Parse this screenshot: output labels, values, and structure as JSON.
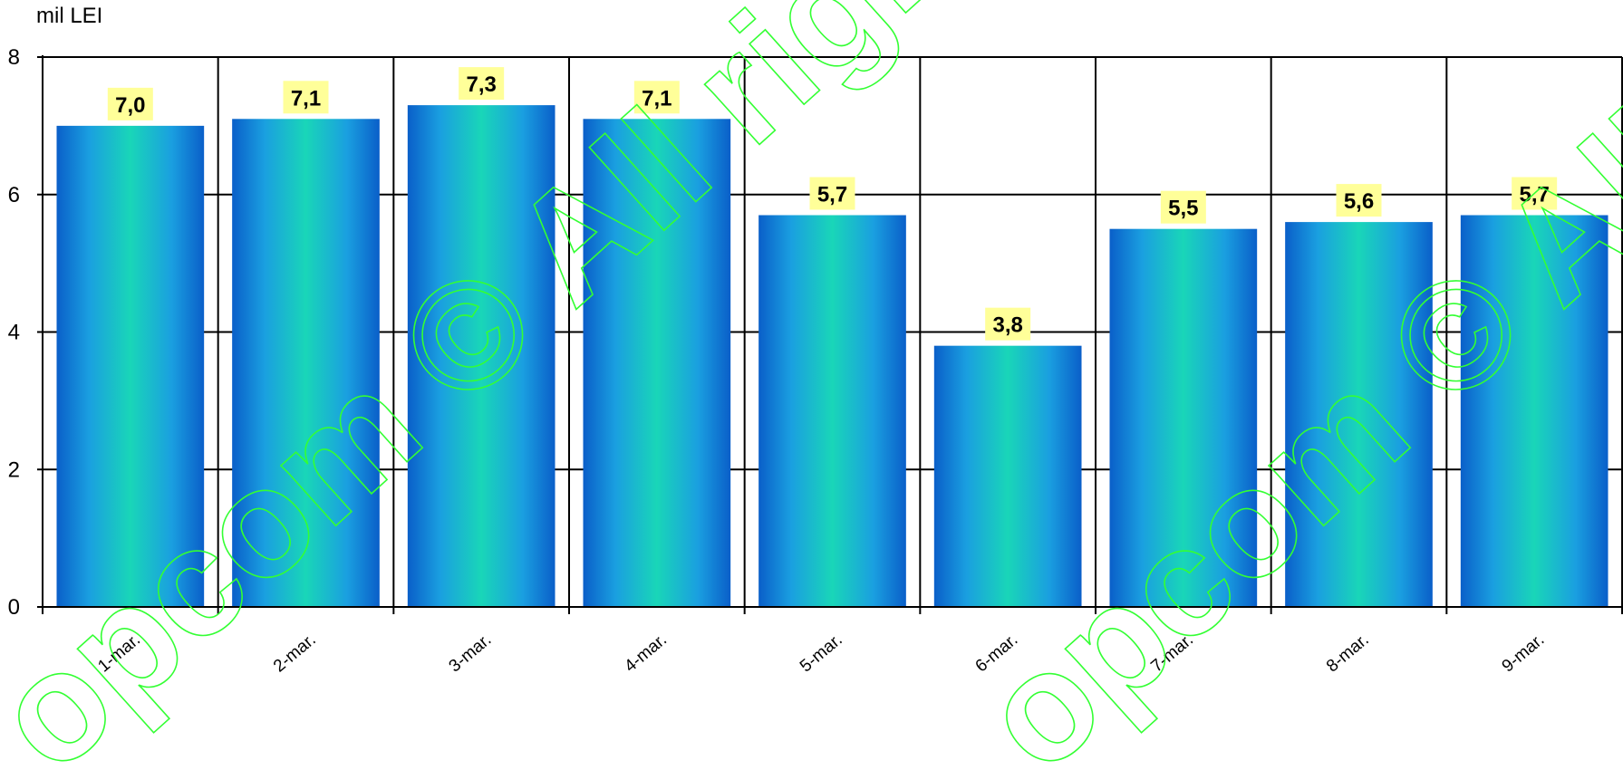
{
  "chart_data": {
    "type": "bar",
    "unit_label": "mil LEI",
    "categories": [
      "1-mar.",
      "2-mar.",
      "3-mar.",
      "4-mar.",
      "5-mar.",
      "6-mar.",
      "7-mar.",
      "8-mar.",
      "9-mar."
    ],
    "values": [
      7.0,
      7.1,
      7.3,
      7.1,
      5.7,
      3.8,
      5.5,
      5.6,
      5.7
    ],
    "value_labels": [
      "7,0",
      "7,1",
      "7,3",
      "7,1",
      "5,7",
      "3,8",
      "5,5",
      "5,6",
      "5,7"
    ],
    "ylim": [
      0,
      8
    ],
    "yticks": [
      0,
      2,
      4,
      6,
      8
    ],
    "ytick_labels": [
      "0",
      "2",
      "4",
      "6",
      "8"
    ],
    "grid": true,
    "legend": "none",
    "colors": {
      "bar_edge": "#0a5fc9",
      "bar_center": "#19d6b8",
      "label_bg": "#ffff99",
      "grid": "#000000"
    },
    "watermark": "opcom © All rights reserved"
  }
}
